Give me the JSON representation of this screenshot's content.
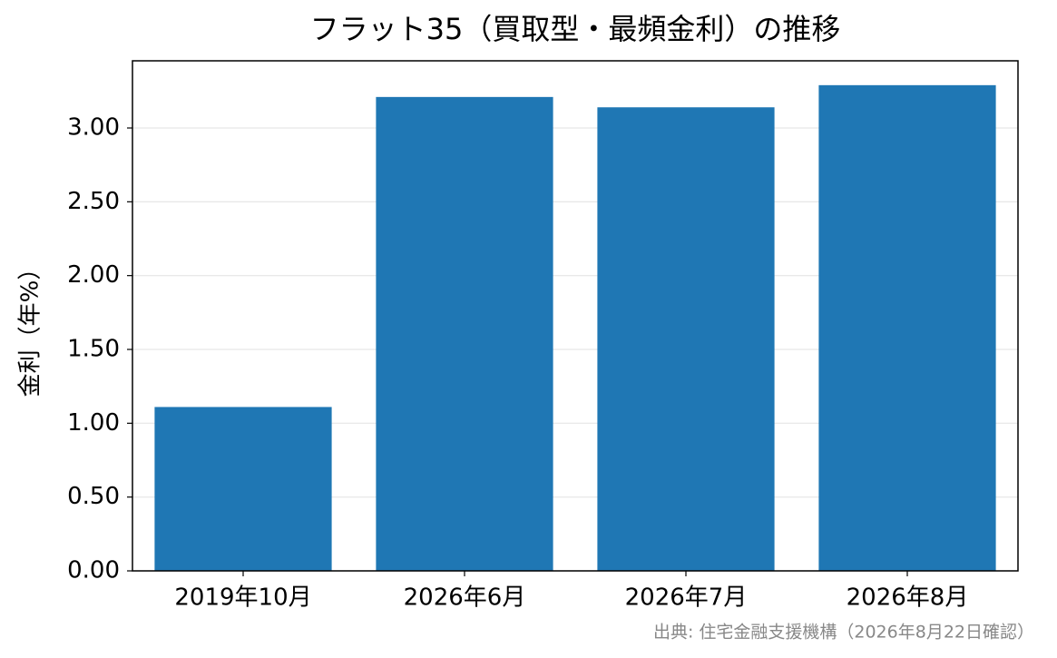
{
  "chart_data": {
    "type": "bar",
    "title": "フラット35（買取型・最頻金利）の推移",
    "ylabel": "金利（年%）",
    "source": "出典: 住宅金融支援機構（2026年8月22日確認）",
    "categories": [
      "2019年10月",
      "2026年6月",
      "2026年7月",
      "2026年8月"
    ],
    "values": [
      1.11,
      3.21,
      3.14,
      3.29
    ],
    "color": "#1f77b4",
    "ylim": [
      0,
      3.455
    ],
    "yticks": [
      {
        "value": 0,
        "label": "0.00"
      },
      {
        "value": 0.5,
        "label": "0.50"
      },
      {
        "value": 1,
        "label": "1.00"
      },
      {
        "value": 1.5,
        "label": "1.50"
      },
      {
        "value": 2,
        "label": "2.00"
      },
      {
        "value": 2.5,
        "label": "2.50"
      },
      {
        "value": 3,
        "label": "3.00"
      }
    ],
    "grid": true
  }
}
